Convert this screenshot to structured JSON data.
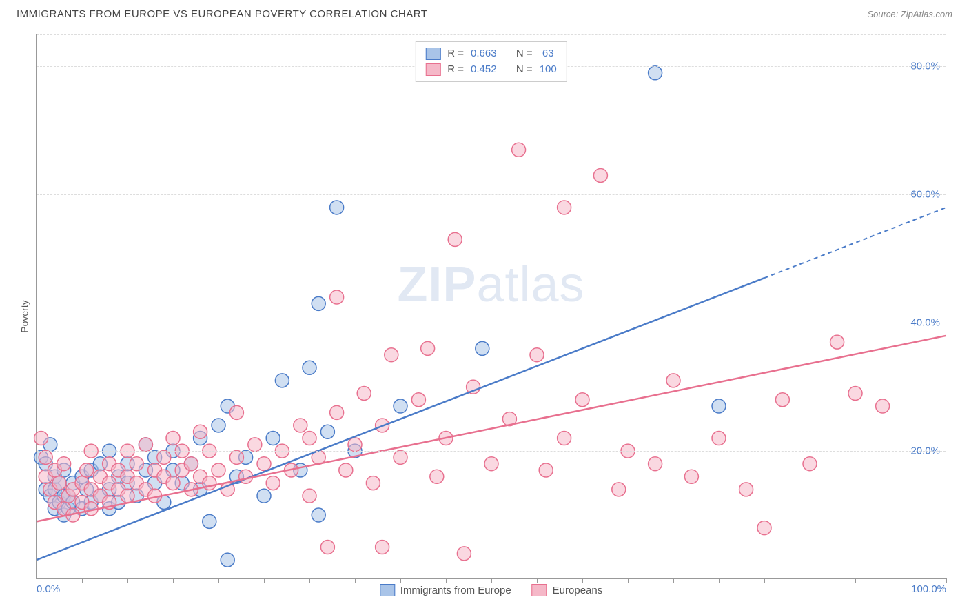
{
  "header": {
    "title": "IMMIGRANTS FROM EUROPE VS EUROPEAN POVERTY CORRELATION CHART",
    "source": "Source: ZipAtlas.com"
  },
  "chart": {
    "type": "scatter",
    "ylabel": "Poverty",
    "watermark_1": "ZIP",
    "watermark_2": "atlas",
    "xlim": [
      0,
      100
    ],
    "ylim": [
      0,
      85
    ],
    "ytick_step": 20,
    "xtick_minor_step": 5,
    "xtick_labels": [
      "0.0%",
      "100.0%"
    ],
    "ytick_labels": [
      "20.0%",
      "40.0%",
      "60.0%",
      "80.0%"
    ],
    "grid_color": "#dddddd",
    "axis_color": "#999999",
    "tick_label_color": "#4a7bc8",
    "background_color": "#ffffff",
    "marker_radius": 10,
    "marker_stroke_width": 1.5,
    "line_width": 2.5,
    "series": [
      {
        "name": "Immigrants from Europe",
        "color_stroke": "#4a7bc8",
        "color_fill": "#a9c4e8",
        "fill_opacity": 0.55,
        "R": "0.663",
        "N": "63",
        "trend": {
          "x1": 0,
          "y1": 3,
          "x2": 80,
          "y2": 47,
          "dash_x2": 100,
          "dash_y2": 58
        },
        "points": [
          [
            0.5,
            19
          ],
          [
            1,
            14
          ],
          [
            1,
            18
          ],
          [
            1.5,
            13
          ],
          [
            1.5,
            21
          ],
          [
            2,
            11
          ],
          [
            2,
            14
          ],
          [
            2,
            16
          ],
          [
            2.5,
            12
          ],
          [
            2.5,
            15
          ],
          [
            3,
            10
          ],
          [
            3,
            13
          ],
          [
            3,
            17
          ],
          [
            3.5,
            11
          ],
          [
            3.5,
            13
          ],
          [
            4,
            12
          ],
          [
            4,
            15
          ],
          [
            5,
            11
          ],
          [
            5,
            16
          ],
          [
            5.5,
            14
          ],
          [
            6,
            12
          ],
          [
            6,
            17
          ],
          [
            7,
            13
          ],
          [
            7,
            18
          ],
          [
            8,
            11
          ],
          [
            8,
            14
          ],
          [
            8,
            20
          ],
          [
            9,
            12
          ],
          [
            9,
            16
          ],
          [
            10,
            15
          ],
          [
            10,
            18
          ],
          [
            11,
            13
          ],
          [
            12,
            17
          ],
          [
            12,
            21
          ],
          [
            13,
            15
          ],
          [
            13,
            19
          ],
          [
            14,
            12
          ],
          [
            15,
            17
          ],
          [
            15,
            20
          ],
          [
            16,
            15
          ],
          [
            17,
            18
          ],
          [
            18,
            14
          ],
          [
            18,
            22
          ],
          [
            19,
            9
          ],
          [
            20,
            24
          ],
          [
            21,
            3
          ],
          [
            21,
            27
          ],
          [
            22,
            16
          ],
          [
            23,
            19
          ],
          [
            25,
            13
          ],
          [
            26,
            22
          ],
          [
            27,
            31
          ],
          [
            29,
            17
          ],
          [
            30,
            33
          ],
          [
            31,
            10
          ],
          [
            31,
            43
          ],
          [
            32,
            23
          ],
          [
            33,
            58
          ],
          [
            35,
            20
          ],
          [
            40,
            27
          ],
          [
            49,
            36
          ],
          [
            68,
            79
          ],
          [
            75,
            27
          ]
        ]
      },
      {
        "name": "Europeans",
        "color_stroke": "#e8708f",
        "color_fill": "#f5b8c8",
        "fill_opacity": 0.55,
        "R": "0.452",
        "N": "100",
        "trend": {
          "x1": 0,
          "y1": 9,
          "x2": 100,
          "y2": 38
        },
        "points": [
          [
            0.5,
            22
          ],
          [
            1,
            16
          ],
          [
            1,
            19
          ],
          [
            1.5,
            14
          ],
          [
            2,
            12
          ],
          [
            2,
            17
          ],
          [
            2.5,
            15
          ],
          [
            3,
            11
          ],
          [
            3,
            18
          ],
          [
            3.5,
            13
          ],
          [
            4,
            10
          ],
          [
            4,
            14
          ],
          [
            5,
            12
          ],
          [
            5,
            15
          ],
          [
            5.5,
            17
          ],
          [
            6,
            11
          ],
          [
            6,
            14
          ],
          [
            6,
            20
          ],
          [
            7,
            13
          ],
          [
            7,
            16
          ],
          [
            8,
            12
          ],
          [
            8,
            15
          ],
          [
            8,
            18
          ],
          [
            9,
            14
          ],
          [
            9,
            17
          ],
          [
            10,
            13
          ],
          [
            10,
            16
          ],
          [
            10,
            20
          ],
          [
            11,
            15
          ],
          [
            11,
            18
          ],
          [
            12,
            14
          ],
          [
            12,
            21
          ],
          [
            13,
            13
          ],
          [
            13,
            17
          ],
          [
            14,
            16
          ],
          [
            14,
            19
          ],
          [
            15,
            15
          ],
          [
            15,
            22
          ],
          [
            16,
            17
          ],
          [
            16,
            20
          ],
          [
            17,
            14
          ],
          [
            17,
            18
          ],
          [
            18,
            16
          ],
          [
            18,
            23
          ],
          [
            19,
            15
          ],
          [
            19,
            20
          ],
          [
            20,
            17
          ],
          [
            21,
            14
          ],
          [
            22,
            19
          ],
          [
            22,
            26
          ],
          [
            23,
            16
          ],
          [
            24,
            21
          ],
          [
            25,
            18
          ],
          [
            26,
            15
          ],
          [
            27,
            20
          ],
          [
            28,
            17
          ],
          [
            29,
            24
          ],
          [
            30,
            13
          ],
          [
            30,
            22
          ],
          [
            31,
            19
          ],
          [
            32,
            5
          ],
          [
            33,
            26
          ],
          [
            33,
            44
          ],
          [
            34,
            17
          ],
          [
            35,
            21
          ],
          [
            36,
            29
          ],
          [
            37,
            15
          ],
          [
            38,
            5
          ],
          [
            38,
            24
          ],
          [
            39,
            35
          ],
          [
            40,
            19
          ],
          [
            42,
            28
          ],
          [
            43,
            36
          ],
          [
            44,
            16
          ],
          [
            45,
            22
          ],
          [
            46,
            53
          ],
          [
            47,
            4
          ],
          [
            48,
            30
          ],
          [
            50,
            18
          ],
          [
            52,
            25
          ],
          [
            53,
            67
          ],
          [
            55,
            35
          ],
          [
            56,
            17
          ],
          [
            58,
            22
          ],
          [
            58,
            58
          ],
          [
            60,
            28
          ],
          [
            62,
            63
          ],
          [
            64,
            14
          ],
          [
            65,
            20
          ],
          [
            68,
            18
          ],
          [
            70,
            31
          ],
          [
            72,
            16
          ],
          [
            75,
            22
          ],
          [
            78,
            14
          ],
          [
            80,
            8
          ],
          [
            82,
            28
          ],
          [
            85,
            18
          ],
          [
            88,
            37
          ],
          [
            90,
            29
          ],
          [
            93,
            27
          ]
        ]
      }
    ],
    "legend_box": {
      "labels": {
        "R": "R =",
        "N": "N ="
      }
    },
    "bottom_legend": {
      "items": [
        "Immigrants from Europe",
        "Europeans"
      ]
    }
  }
}
